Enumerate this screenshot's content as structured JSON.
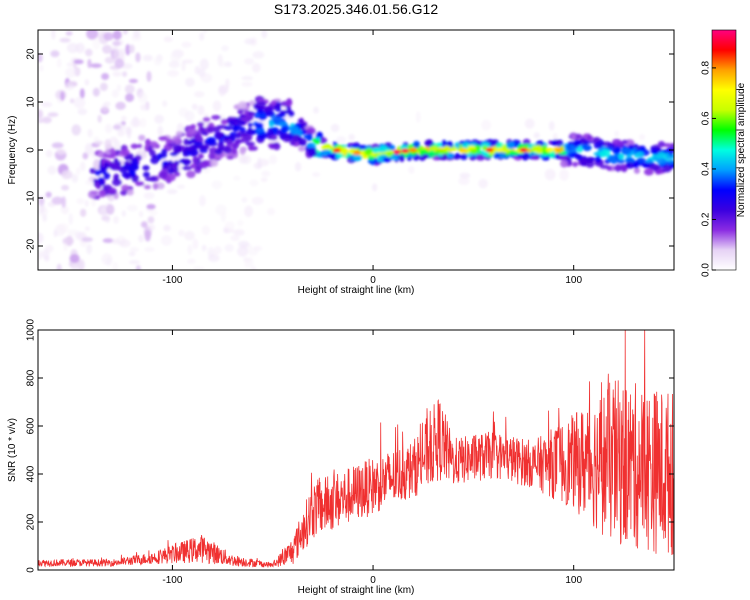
{
  "title": "S173.2025.346.01.56.G12",
  "chart_data": [
    {
      "type": "heatmap",
      "xlabel": "Height of straight line (km)",
      "ylabel": "Frequency (Hz)",
      "xlim": [
        -167,
        150
      ],
      "ylim": [
        -25,
        25
      ],
      "xticks": [
        -100,
        0,
        100
      ],
      "yticks": [
        -20,
        -10,
        0,
        10,
        20
      ],
      "colorbar": {
        "label": "Normalized spectral amplitude",
        "range": [
          0.0,
          0.95
        ],
        "ticks": [
          0.0,
          0.2,
          0.4,
          0.6,
          0.8
        ],
        "stops": [
          "#ffffff",
          "#e6d2f5",
          "#8a2be2",
          "#3a00e0",
          "#0000ff",
          "#00a0ff",
          "#00ffe0",
          "#00ff00",
          "#c8ff00",
          "#ffff00",
          "#ffa000",
          "#ff0000",
          "#ff0080"
        ]
      },
      "ridge": {
        "description_points": [
          {
            "x": -130,
            "y": -5
          },
          {
            "x": -100,
            "y": -2
          },
          {
            "x": -80,
            "y": 2
          },
          {
            "x": -55,
            "y": 6
          },
          {
            "x": -40,
            "y": 5
          },
          {
            "x": -30,
            "y": 1
          },
          {
            "x": -20,
            "y": 0
          },
          {
            "x": 0,
            "y": -1
          },
          {
            "x": 20,
            "y": 0
          },
          {
            "x": 60,
            "y": 0
          },
          {
            "x": 100,
            "y": 0
          },
          {
            "x": 120,
            "y": -1
          },
          {
            "x": 150,
            "y": -2
          }
        ]
      }
    },
    {
      "type": "line",
      "xlabel": "Height of straight line (km)",
      "ylabel": "SNR (10 * v/v)",
      "xlim": [
        -167,
        150
      ],
      "ylim": [
        0,
        1000
      ],
      "xticks": [
        -100,
        0,
        100
      ],
      "yticks": [
        0,
        200,
        400,
        600,
        800,
        1000
      ],
      "color": "#f03030",
      "envelope": [
        {
          "x": -167,
          "mean": 30,
          "spread": 15
        },
        {
          "x": -130,
          "mean": 30,
          "spread": 15
        },
        {
          "x": -110,
          "mean": 50,
          "spread": 25
        },
        {
          "x": -85,
          "mean": 90,
          "spread": 60
        },
        {
          "x": -70,
          "mean": 40,
          "spread": 25
        },
        {
          "x": -50,
          "mean": 20,
          "spread": 10
        },
        {
          "x": -40,
          "mean": 80,
          "spread": 60
        },
        {
          "x": -30,
          "mean": 250,
          "spread": 120
        },
        {
          "x": -15,
          "mean": 300,
          "spread": 120
        },
        {
          "x": 0,
          "mean": 350,
          "spread": 120
        },
        {
          "x": 20,
          "mean": 420,
          "spread": 120
        },
        {
          "x": 33,
          "mean": 550,
          "spread": 180
        },
        {
          "x": 40,
          "mean": 450,
          "spread": 100
        },
        {
          "x": 60,
          "mean": 480,
          "spread": 100
        },
        {
          "x": 80,
          "mean": 440,
          "spread": 100
        },
        {
          "x": 100,
          "mean": 450,
          "spread": 200
        },
        {
          "x": 120,
          "mean": 450,
          "spread": 350
        },
        {
          "x": 150,
          "mean": 400,
          "spread": 350
        }
      ]
    }
  ]
}
